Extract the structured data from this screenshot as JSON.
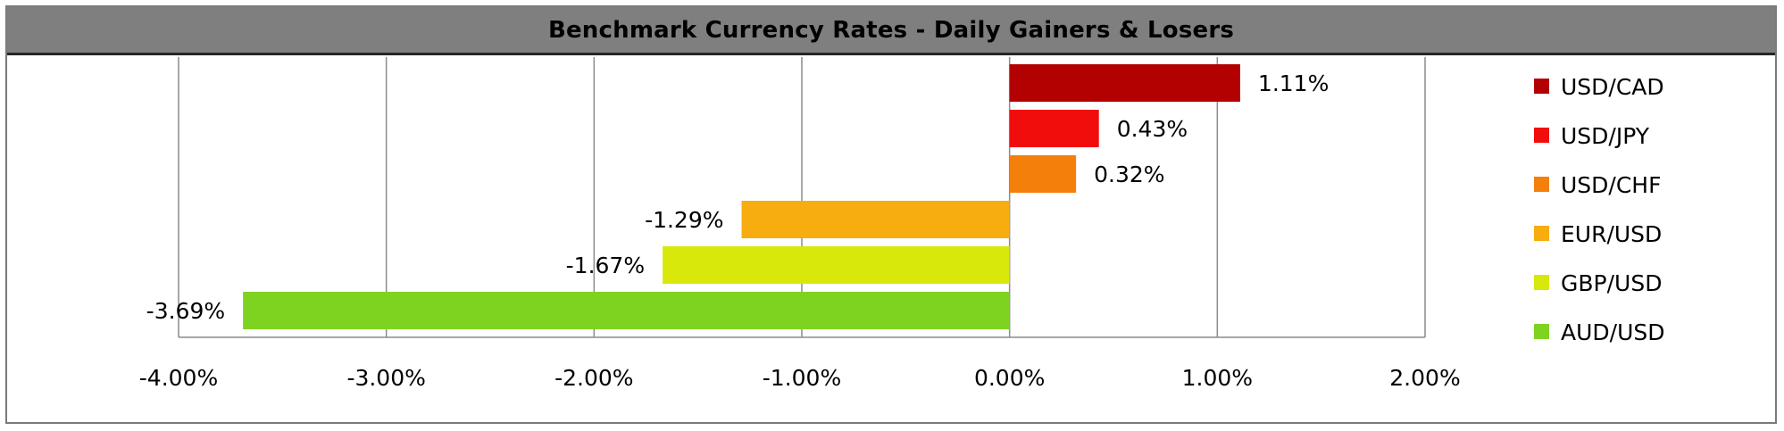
{
  "title": "Benchmark Currency Rates - Daily Gainers & Losers",
  "chart_data": {
    "type": "bar",
    "orientation": "horizontal",
    "title": "Benchmark Currency Rates - Daily Gainers & Losers",
    "categories": [
      "USD/CAD",
      "USD/JPY",
      "USD/CHF",
      "EUR/USD",
      "GBP/USD",
      "AUD/USD"
    ],
    "values": [
      1.11,
      0.43,
      0.32,
      -1.29,
      -1.67,
      -3.69
    ],
    "data_labels": [
      "1.11%",
      "0.43%",
      "0.32%",
      "-1.29%",
      "-1.67%",
      "-3.69%"
    ],
    "colors": [
      "#b30000",
      "#f20d0d",
      "#f57f0b",
      "#f7ac10",
      "#d8e80b",
      "#7ed321"
    ],
    "xlim": [
      -4,
      2
    ],
    "x_ticks": [
      -4,
      -3,
      -2,
      -1,
      0,
      1,
      2
    ],
    "x_tick_labels": [
      "-4.00%",
      "-3.00%",
      "-2.00%",
      "-1.00%",
      "0.00%",
      "1.00%",
      "2.00%"
    ],
    "xlabel": "",
    "ylabel": "",
    "grid": "vertical",
    "legend": {
      "position": "right",
      "entries": [
        "USD/CAD",
        "USD/JPY",
        "USD/CHF",
        "EUR/USD",
        "GBP/USD",
        "AUD/USD"
      ]
    }
  }
}
